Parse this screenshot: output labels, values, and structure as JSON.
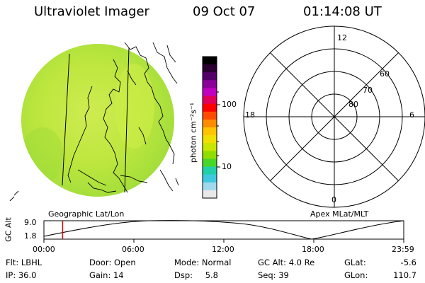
{
  "header": {
    "title": "Ultraviolet Imager",
    "date": "09 Oct 07",
    "time": "01:14:08 UT"
  },
  "left_panel": {
    "label": "Geographic Lat/Lon"
  },
  "colorbar": {
    "axis_label": "photon cm⁻²s⁻¹",
    "ticks": [
      "100",
      "10"
    ],
    "colors": [
      "#000000",
      "#2a0030",
      "#55006a",
      "#8a0099",
      "#c000c0",
      "#e0005a",
      "#ff0000",
      "#ff4a00",
      "#ff8c00",
      "#ffc300",
      "#f0e000",
      "#c8e600",
      "#90dd00",
      "#48d628",
      "#20d0a8",
      "#40c8e0",
      "#a0d8ee",
      "#e8e8e8"
    ]
  },
  "polar_plot": {
    "label": "Apex MLat/MLT",
    "mlt_labels": {
      "top": "12",
      "left": "18",
      "right": "6",
      "bottom": "0"
    },
    "lat_labels": [
      "60",
      "70",
      "80"
    ]
  },
  "timeline": {
    "ylabel": "GC Alt",
    "ymax": "9.0",
    "ymin": "1.8",
    "xticks": [
      "00:00",
      "06:00",
      "12:00",
      "18:00",
      "23:59"
    ],
    "marker_time_fraction": 0.052,
    "marker_color": "#e00000"
  },
  "info": {
    "row1": {
      "flt_label": "Flt:",
      "flt_value": "LBHL",
      "door_label": "Door:",
      "door_value": "Open",
      "mode_label": "Mode:",
      "mode_value": "Normal",
      "gcalt_label": "GC Alt:",
      "gcalt_value": "4.0 Re",
      "glat_label": "GLat:",
      "glat_value": "-5.6"
    },
    "row2": {
      "ip_label": "IP:",
      "ip_value": "36.0",
      "gain_label": "Gain:",
      "gain_value": "14",
      "dsp_label": "Dsp:",
      "dsp_value": "5.8",
      "seq_label": "Seq:",
      "seq_value": "39",
      "glon_label": "GLon:",
      "glon_value": "110.7"
    }
  },
  "image_colors": {
    "base": "#b8e830",
    "light": "#d2ec50",
    "dark": "#98dc30"
  }
}
